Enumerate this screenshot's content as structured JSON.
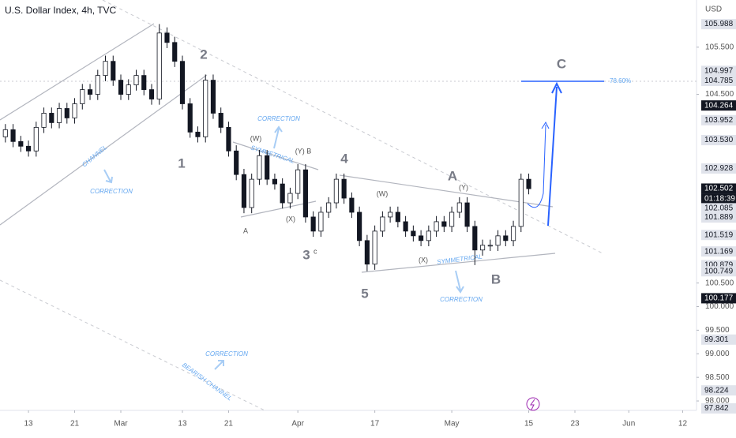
{
  "chart_data": {
    "type": "candlestick",
    "title": "U.S. Dollar Index, 4h, TVC",
    "currency": "USD",
    "x": [
      -3,
      -2,
      -1,
      0,
      1,
      2,
      3,
      4,
      5,
      6,
      7,
      8,
      9,
      10,
      11,
      12,
      13,
      14,
      15,
      16,
      17,
      18,
      19,
      20,
      21,
      22,
      23,
      24,
      25,
      26,
      27,
      28,
      29,
      30,
      31,
      32,
      33,
      34,
      35,
      36,
      37,
      38,
      39,
      40,
      41,
      42,
      43,
      44,
      45,
      46,
      47,
      48,
      49,
      50,
      51,
      52,
      53,
      54,
      55,
      56,
      57,
      58,
      59,
      60,
      61,
      62,
      63,
      64,
      65
    ],
    "open": [
      103.6,
      103.75,
      103.5,
      103.4,
      103.3,
      103.8,
      104.1,
      103.9,
      104.2,
      104.0,
      104.3,
      104.6,
      104.5,
      104.9,
      105.2,
      104.8,
      104.5,
      104.7,
      104.9,
      104.6,
      104.4,
      105.8,
      105.6,
      105.2,
      104.3,
      103.7,
      103.6,
      104.8,
      104.1,
      103.8,
      103.3,
      102.8,
      102.1,
      102.7,
      103.2,
      102.7,
      102.6,
      102.2,
      102.4,
      102.9,
      101.9,
      101.6,
      102.0,
      102.2,
      102.7,
      102.3,
      102.0,
      101.4,
      100.9,
      101.6,
      101.9,
      102.0,
      101.8,
      101.6,
      101.5,
      101.4,
      101.6,
      101.8,
      101.7,
      102.0,
      102.2,
      101.7,
      101.2,
      101.3,
      101.3,
      101.5,
      101.4,
      101.7,
      102.7
    ],
    "high": [
      103.87,
      103.87,
      103.62,
      103.52,
      103.92,
      104.22,
      104.22,
      104.32,
      104.32,
      104.42,
      104.72,
      104.72,
      105.02,
      105.32,
      105.32,
      104.92,
      104.82,
      105.02,
      105.02,
      104.72,
      105.99,
      105.92,
      105.72,
      105.32,
      104.42,
      103.82,
      104.92,
      104.92,
      104.22,
      103.92,
      103.42,
      102.92,
      102.82,
      103.32,
      103.32,
      102.82,
      102.72,
      102.52,
      103.02,
      103.02,
      102.02,
      102.12,
      102.32,
      102.82,
      102.82,
      102.42,
      102.12,
      101.52,
      101.72,
      102.02,
      102.12,
      102.12,
      101.92,
      101.72,
      101.62,
      101.72,
      101.92,
      101.92,
      102.12,
      102.32,
      102.32,
      101.82,
      101.42,
      101.42,
      101.62,
      101.62,
      101.82,
      102.82,
      102.82
    ],
    "low": [
      103.48,
      103.38,
      103.28,
      103.18,
      103.18,
      103.68,
      103.78,
      103.78,
      103.88,
      103.88,
      104.18,
      104.38,
      104.38,
      104.78,
      104.68,
      104.38,
      104.38,
      104.58,
      104.48,
      104.28,
      104.28,
      105.48,
      105.08,
      104.18,
      103.58,
      103.48,
      103.48,
      103.98,
      103.68,
      103.18,
      102.68,
      101.98,
      101.98,
      102.58,
      102.58,
      102.48,
      102.08,
      102.08,
      102.28,
      101.78,
      101.48,
      101.48,
      101.88,
      102.08,
      102.18,
      101.88,
      101.28,
      100.75,
      100.78,
      101.48,
      101.78,
      101.68,
      101.48,
      101.38,
      101.28,
      101.28,
      101.48,
      101.58,
      101.58,
      101.88,
      101.58,
      100.88,
      101.08,
      101.18,
      101.18,
      101.28,
      101.28,
      101.58,
      102.38
    ],
    "close": [
      103.75,
      103.5,
      103.4,
      103.3,
      103.8,
      104.1,
      103.9,
      104.2,
      104.0,
      104.3,
      104.6,
      104.5,
      104.9,
      105.2,
      104.8,
      104.5,
      104.7,
      104.9,
      104.6,
      104.4,
      105.8,
      105.6,
      105.2,
      104.3,
      103.7,
      103.6,
      104.8,
      104.1,
      103.8,
      103.3,
      102.8,
      102.1,
      102.7,
      103.2,
      102.7,
      102.6,
      102.2,
      102.4,
      102.9,
      101.9,
      101.6,
      102.0,
      102.2,
      102.7,
      102.3,
      102.0,
      101.4,
      100.9,
      101.6,
      101.9,
      102.0,
      101.8,
      101.6,
      101.5,
      101.4,
      101.6,
      101.8,
      101.7,
      102.0,
      102.2,
      101.7,
      101.2,
      101.3,
      101.3,
      101.5,
      101.4,
      101.7,
      102.7,
      102.5
    ],
    "up_color": "#ffffff",
    "down_color": "#131722",
    "wick_color": "#131722",
    "xlim": [
      -3.7,
      86.8
    ],
    "xticks": [
      {
        "value": 0,
        "label": "13"
      },
      {
        "value": 6,
        "label": "21"
      },
      {
        "value": 12,
        "label": "Mar"
      },
      {
        "value": 20,
        "label": "13"
      },
      {
        "value": 26,
        "label": "21"
      },
      {
        "value": 35,
        "label": "Apr"
      },
      {
        "value": 45,
        "label": "17"
      },
      {
        "value": 55,
        "label": "May"
      },
      {
        "value": 65,
        "label": "15"
      },
      {
        "value": 71,
        "label": "23"
      },
      {
        "value": 78,
        "label": "Jun"
      },
      {
        "value": 85,
        "label": "12"
      }
    ],
    "ylim": [
      97.8,
      106.5
    ],
    "yticks": [
      {
        "value": 105.5,
        "label": "105.500"
      },
      {
        "value": 104.5,
        "label": "104.500"
      },
      {
        "value": 100.5,
        "label": "100.500"
      },
      {
        "value": 100,
        "label": "100.000"
      },
      {
        "value": 99.5,
        "label": "99.500"
      },
      {
        "value": 99,
        "label": "99.000"
      },
      {
        "value": 98.5,
        "label": "98.500"
      },
      {
        "value": 98,
        "label": "98.000"
      }
    ],
    "price_markers": [
      {
        "value": 105.988,
        "label": "105.988",
        "color": "#e0e3eb"
      },
      {
        "value": 104.997,
        "label": "104.997",
        "color": "#e0e3eb"
      },
      {
        "value": 104.785,
        "label": "104.785",
        "color": "#e0e3eb"
      },
      {
        "value": 104.264,
        "label": "104.264",
        "color": "#131722"
      },
      {
        "value": 103.952,
        "label": "103.952",
        "color": "#e0e3eb"
      },
      {
        "value": 103.53,
        "label": "103.530",
        "color": "#e0e3eb"
      },
      {
        "value": 102.928,
        "label": "102.928",
        "color": "#e0e3eb"
      },
      {
        "value": 102.502,
        "label": "102.502",
        "color": "#131722"
      },
      {
        "value": 102.085,
        "label": "102.085",
        "color": "#e0e3eb"
      },
      {
        "value": 101.889,
        "label": "101.889",
        "color": "#e0e3eb"
      },
      {
        "value": 101.519,
        "label": "101.519",
        "color": "#e0e3eb"
      },
      {
        "value": 101.169,
        "label": "101.169",
        "color": "#e0e3eb"
      },
      {
        "value": 100.879,
        "label": "100.879",
        "color": "#e0e3eb"
      },
      {
        "value": 100.749,
        "label": "100.749",
        "color": "#e0e3eb"
      },
      {
        "value": 100.177,
        "label": "100.177",
        "color": "#131722"
      },
      {
        "value": 99.301,
        "label": "99.301",
        "color": "#e0e3eb"
      },
      {
        "value": 98.224,
        "label": "98.224",
        "color": "#e0e3eb"
      },
      {
        "value": 97.842,
        "label": "97.842",
        "color": "#e0e3eb"
      }
    ],
    "countdown": "01:18:39",
    "fib_label": "78.60%",
    "annotations": [
      "1",
      "2",
      "3",
      "c",
      "4",
      "5",
      "A",
      "B",
      "C",
      "(W)",
      "(X)",
      "(Y) B",
      "A",
      "(W)",
      "(X)",
      "(Y)",
      "CHANNEL",
      "CORRECTION",
      "CORRECTION",
      "SYMMETRICAL",
      "SYMMETRICAL",
      "CORRECTION",
      "CORRECTION",
      "BEARISH CHANNEL"
    ]
  }
}
